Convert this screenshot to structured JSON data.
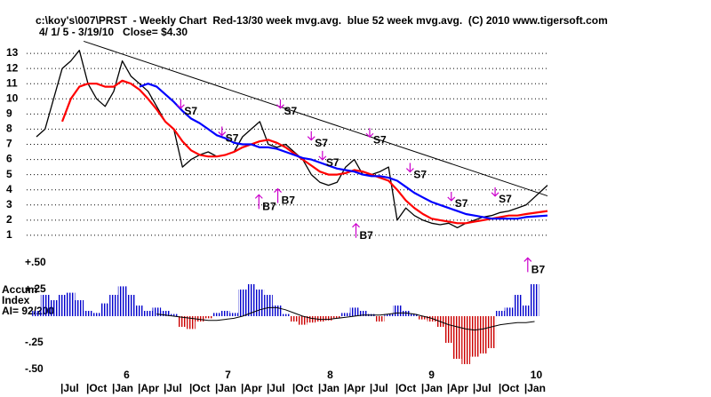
{
  "title": "c:\\koy's\\007\\PRST  - Weekly Chart  Red-13/30 week mvg.avg.  blue 52 week mvg.avg.  (C) 2010 www.tigersoft.com",
  "subtitle": "4/ 1/ 5 - 3/19/10   Close= $4.30",
  "chart_data": [
    {
      "type": "line",
      "x": [
        0,
        1,
        2,
        3,
        4,
        5,
        6,
        7,
        8,
        9,
        10,
        11,
        12,
        13,
        14,
        15,
        16,
        17,
        18,
        19,
        20,
        21,
        22,
        23,
        24,
        25,
        26,
        27,
        28,
        29,
        30,
        31,
        32,
        33,
        34,
        35,
        36,
        37,
        38,
        39,
        40,
        41,
        42,
        43,
        44,
        45,
        46,
        47,
        48,
        49,
        50,
        51,
        52,
        53,
        54,
        55,
        56,
        57,
        59.5
      ],
      "xlim": [
        0,
        59.6
      ],
      "ylim": [
        0,
        14
      ],
      "yticks": [
        1,
        2,
        3,
        4,
        5,
        6,
        7,
        8,
        9,
        10,
        11,
        12,
        13
      ],
      "grid": true,
      "series": [
        {
          "color": "#000000",
          "values": [
            7.5,
            8,
            10,
            12,
            12.5,
            13.2,
            11,
            10,
            9.5,
            10.5,
            12.5,
            11.5,
            11,
            10.5,
            9.5,
            8.5,
            8,
            5.5,
            6,
            6.3,
            6.5,
            6.2,
            6.3,
            6.5,
            7.5,
            8,
            8.5,
            7,
            6.8,
            7,
            6.5,
            6,
            5,
            4.5,
            4.3,
            4.5,
            5.5,
            6,
            5,
            5,
            5.2,
            5.5,
            2,
            2.8,
            2.3,
            2,
            1.8,
            1.7,
            1.8,
            1.5,
            1.8,
            2,
            2.2,
            2.3,
            2.5,
            2.6,
            2.8,
            3,
            4.3
          ]
        },
        {
          "color": "#ff0000",
          "values": [
            null,
            null,
            null,
            8.5,
            10,
            10.8,
            11,
            11,
            10.8,
            10.8,
            11.2,
            11,
            10.6,
            10,
            9.3,
            8.5,
            8,
            7.2,
            6.6,
            6.3,
            6.2,
            6.2,
            6.3,
            6.5,
            6.8,
            7,
            7.2,
            7.3,
            7.1,
            6.8,
            6.4,
            6,
            5.6,
            5.2,
            5,
            5,
            5.1,
            5.3,
            5.2,
            5,
            4.8,
            4.6,
            4,
            3.3,
            2.8,
            2.4,
            2.1,
            2,
            1.9,
            1.8,
            1.8,
            1.9,
            2,
            2.1,
            2.2,
            2.3,
            2.3,
            2.4,
            2.6
          ]
        },
        {
          "color": "#0000ff",
          "values": [
            null,
            null,
            null,
            null,
            null,
            null,
            null,
            null,
            null,
            null,
            null,
            null,
            10.8,
            11,
            10.8,
            10.3,
            9.8,
            9.2,
            8.7,
            8.4,
            8,
            7.6,
            7.4,
            7.1,
            7,
            7,
            6.8,
            6.8,
            6.7,
            6.5,
            6.3,
            6.1,
            6,
            5.8,
            5.6,
            5.4,
            5.3,
            5.2,
            5,
            4.9,
            4.9,
            4.8,
            4.6,
            4.2,
            3.8,
            3.5,
            3.2,
            3,
            2.8,
            2.6,
            2.4,
            2.3,
            2.2,
            2.1,
            2.1,
            2.1,
            2.1,
            2.2,
            2.3
          ]
        }
      ],
      "trendline": {
        "color": "#000000",
        "x": [
          5.5,
          59.5
        ],
        "y": [
          13.8,
          3.6
        ]
      },
      "signal_color": "#cc00cc",
      "signals": [
        {
          "label": "S7",
          "direction": "down",
          "x": 16.8,
          "y": 9.5
        },
        {
          "label": "S7",
          "direction": "down",
          "x": 21.6,
          "y": 7.7
        },
        {
          "label": "S7",
          "direction": "down",
          "x": 28.4,
          "y": 9.5
        },
        {
          "label": "S7",
          "direction": "down",
          "x": 32,
          "y": 7.4
        },
        {
          "label": "S7",
          "direction": "down",
          "x": 33.3,
          "y": 6.1
        },
        {
          "label": "S7",
          "direction": "down",
          "x": 38.8,
          "y": 7.6
        },
        {
          "label": "S7",
          "direction": "down",
          "x": 43.5,
          "y": 5.3
        },
        {
          "label": "S7",
          "direction": "down",
          "x": 48.3,
          "y": 3.4
        },
        {
          "label": "S7",
          "direction": "down",
          "x": 53.4,
          "y": 3.7
        },
        {
          "label": "B7",
          "direction": "up",
          "x": 25.9,
          "y": 3.2
        },
        {
          "label": "B7",
          "direction": "up",
          "x": 28.1,
          "y": 3.6
        },
        {
          "label": "B7",
          "direction": "up",
          "x": 37.2,
          "y": 1.3
        }
      ]
    },
    {
      "type": "bar",
      "labels": [
        "Accum",
        "Index",
        "AI= 92/200"
      ],
      "x": [
        0,
        1,
        2,
        3,
        4,
        5,
        6,
        7,
        8,
        9,
        10,
        11,
        12,
        13,
        14,
        15,
        16,
        17,
        18,
        19,
        20,
        21,
        22,
        23,
        24,
        25,
        26,
        27,
        28,
        29,
        30,
        31,
        32,
        33,
        34,
        35,
        36,
        37,
        38,
        39,
        40,
        41,
        42,
        43,
        44,
        45,
        46,
        47,
        48,
        49,
        50,
        51,
        52,
        53,
        54,
        55,
        56,
        57,
        58
      ],
      "xlim": [
        0,
        59.6
      ],
      "ylim": [
        -0.55,
        0.55
      ],
      "yticks": [
        {
          "value": 0.5,
          "label": "+.50"
        },
        {
          "value": 0.25,
          "label": "+.25"
        },
        {
          "value": -0.25,
          "label": "-.25"
        },
        {
          "value": -0.5,
          "label": "-.50"
        }
      ],
      "positive_color": "#0000cc",
      "negative_color": "#cc0000",
      "values": [
        0.05,
        0.2,
        0.15,
        0.2,
        0.22,
        0.15,
        0.05,
        0.03,
        0.12,
        0.2,
        0.28,
        0.2,
        0.1,
        0.05,
        0.08,
        0.05,
        0.02,
        -0.1,
        -0.12,
        -0.05,
        -0.02,
        0.03,
        0.05,
        0.03,
        0.25,
        0.3,
        0.25,
        0.2,
        0.1,
        0.02,
        -0.05,
        -0.08,
        -0.06,
        -0.05,
        -0.04,
        -0.02,
        0.03,
        0.08,
        0.05,
        0.02,
        -0.05,
        0.02,
        0.1,
        0.05,
        0.02,
        -0.03,
        -0.05,
        -0.1,
        -0.25,
        -0.4,
        -0.45,
        -0.38,
        -0.35,
        -0.3,
        0.05,
        0.08,
        0.2,
        0.1,
        0.3
      ],
      "line": {
        "color": "#000000",
        "values": [
          null,
          null,
          null,
          null,
          null,
          null,
          null,
          null,
          null,
          null,
          null,
          null,
          null,
          null,
          0.02,
          0.01,
          0,
          -0.01,
          -0.02,
          -0.03,
          -0.04,
          -0.04,
          -0.03,
          -0.02,
          0,
          0.03,
          0.06,
          0.08,
          0.08,
          0.06,
          0.03,
          0,
          -0.02,
          -0.03,
          -0.03,
          -0.02,
          -0.01,
          0,
          0.01,
          0.01,
          0.01,
          0.02,
          0.03,
          0.03,
          0.02,
          0,
          -0.02,
          -0.05,
          -0.08,
          -0.1,
          -0.12,
          -0.13,
          -0.12,
          -0.1,
          -0.08,
          -0.07,
          -0.06,
          -0.06,
          -0.05
        ]
      },
      "signals": [
        {
          "label": "B7",
          "direction": "up",
          "x": 57.2,
          "y": 0.48
        }
      ],
      "signal_color": "#cc00cc",
      "xticks": [
        {
          "value": 3,
          "label": "|Jul"
        },
        {
          "value": 6,
          "label": "|Oct"
        },
        {
          "value": 9,
          "label": "|Jan"
        },
        {
          "value": 12,
          "label": "|Apr"
        },
        {
          "value": 15,
          "label": "|Jul"
        },
        {
          "value": 18,
          "label": "|Oct"
        },
        {
          "value": 21,
          "label": "|Jan"
        },
        {
          "value": 24,
          "label": "|Apr"
        },
        {
          "value": 27,
          "label": "|Jul"
        },
        {
          "value": 30,
          "label": "|Oct"
        },
        {
          "value": 33,
          "label": "|Jan"
        },
        {
          "value": 36,
          "label": "|Apr"
        },
        {
          "value": 39,
          "label": "|Jul"
        },
        {
          "value": 42,
          "label": "|Oct"
        },
        {
          "value": 45,
          "label": "|Jan"
        },
        {
          "value": 48,
          "label": "|Apr"
        },
        {
          "value": 51,
          "label": "|Jul"
        },
        {
          "value": 54,
          "label": "|Oct"
        },
        {
          "value": 57,
          "label": "|Jan"
        }
      ],
      "year_labels": [
        {
          "value": 10.5,
          "label": "6"
        },
        {
          "value": 22.3,
          "label": "7"
        },
        {
          "value": 34.2,
          "label": "8"
        },
        {
          "value": 46,
          "label": "9"
        },
        {
          "value": 58.2,
          "label": "10"
        }
      ]
    }
  ]
}
